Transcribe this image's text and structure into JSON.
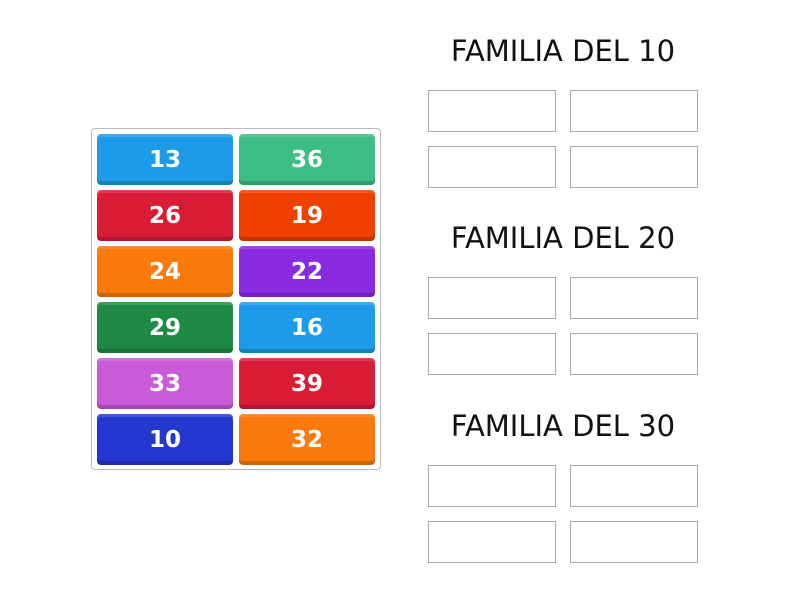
{
  "tiles": [
    {
      "label": "13",
      "color": "#1e9be8"
    },
    {
      "label": "36",
      "color": "#3dbd85"
    },
    {
      "label": "26",
      "color": "#d91c36"
    },
    {
      "label": "19",
      "color": "#f04000"
    },
    {
      "label": "24",
      "color": "#fb7a0c"
    },
    {
      "label": "22",
      "color": "#8a2be2"
    },
    {
      "label": "29",
      "color": "#1f8a45"
    },
    {
      "label": "16",
      "color": "#1e9be8"
    },
    {
      "label": "33",
      "color": "#c95ad8"
    },
    {
      "label": "39",
      "color": "#d91c36"
    },
    {
      "label": "10",
      "color": "#2438cf"
    },
    {
      "label": "32",
      "color": "#fb7a0c"
    }
  ],
  "groups": [
    {
      "title": "FAMILIA DEL 10",
      "slots": 4
    },
    {
      "title": "FAMILIA DEL 20",
      "slots": 4
    },
    {
      "title": "FAMILIA DEL 30",
      "slots": 4
    }
  ]
}
